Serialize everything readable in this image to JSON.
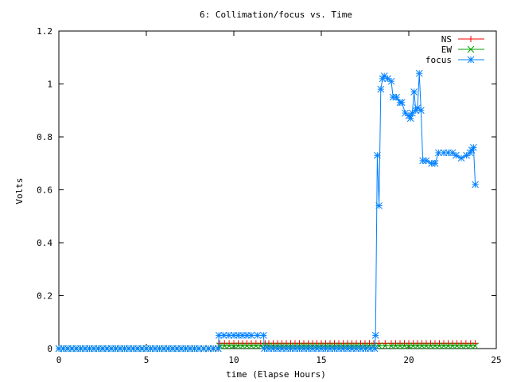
{
  "chart_data": {
    "type": "line",
    "title": "6: Collimation/focus vs. Time",
    "xlabel": "time (Elapse Hours)",
    "ylabel": "Volts",
    "xlim": [
      0,
      25
    ],
    "ylim": [
      0,
      1.2
    ],
    "xticks": [
      0,
      5,
      10,
      15,
      20,
      25
    ],
    "yticks": [
      0,
      0.2,
      0.4,
      0.6,
      0.8,
      1,
      1.2
    ],
    "xtick_labels": [
      "0",
      "5",
      "10",
      "15",
      "20",
      "25"
    ],
    "ytick_labels": [
      "0",
      "0.2",
      "0.4",
      "0.6",
      "0.8",
      "1",
      "1.2"
    ],
    "grid": false,
    "legend_position": "top-right",
    "series": [
      {
        "name": "NS",
        "color": "#ff0000",
        "marker": "plus",
        "x": [
          0,
          1,
          2,
          3,
          4,
          5,
          6,
          7,
          8,
          9.1,
          9.2,
          10,
          11,
          11.8,
          12,
          13,
          14,
          15,
          16,
          17,
          18,
          18.3,
          19,
          20,
          21,
          22,
          23,
          23.8
        ],
        "y": [
          0,
          0,
          0,
          0,
          0,
          0,
          0,
          0,
          0,
          0,
          0.02,
          0.02,
          0.02,
          0.02,
          0.02,
          0.02,
          0.02,
          0.02,
          0.02,
          0.02,
          0.02,
          0.02,
          0.02,
          0.02,
          0.02,
          0.02,
          0.02,
          0.02
        ]
      },
      {
        "name": "EW",
        "color": "#00a000",
        "marker": "cross",
        "x": [
          0,
          1,
          2,
          3,
          4,
          5,
          6,
          7,
          8,
          9.1,
          9.2,
          10,
          11,
          11.8,
          12,
          13,
          14,
          15,
          16,
          17,
          18,
          18.3,
          19,
          20,
          21,
          22,
          23,
          23.8
        ],
        "y": [
          0,
          0,
          0,
          0,
          0,
          0,
          0,
          0,
          0,
          0,
          0.01,
          0.01,
          0.01,
          0.01,
          0.01,
          0.01,
          0.01,
          0.01,
          0.01,
          0.01,
          0.01,
          0.01,
          0.01,
          0.01,
          0.01,
          0.01,
          0.01,
          0.01
        ]
      },
      {
        "name": "focus",
        "color": "#0080ff",
        "marker": "star",
        "x": [
          0,
          1,
          2,
          3,
          4,
          5,
          6,
          7,
          8,
          9.1,
          9.15,
          10,
          11,
          11.7,
          11.75,
          12,
          13,
          14,
          15,
          16,
          17,
          18.05,
          18.1,
          18.2,
          18.3,
          18.4,
          18.5,
          18.6,
          18.8,
          19,
          19.1,
          19.3,
          19.5,
          19.6,
          19.8,
          20,
          20.1,
          20.2,
          20.3,
          20.4,
          20.5,
          20.6,
          20.7,
          20.8,
          21,
          21.3,
          21.5,
          21.7,
          22,
          22.5,
          22.7,
          23,
          23.3,
          23.5,
          23.6,
          23.7,
          23.8
        ],
        "y": [
          0,
          0,
          0,
          0,
          0,
          0,
          0,
          0,
          0,
          0,
          0.05,
          0.05,
          0.05,
          0.05,
          0,
          0,
          0,
          0,
          0,
          0,
          0,
          0,
          0.05,
          0.73,
          0.54,
          0.98,
          1.02,
          1.03,
          1.02,
          1.01,
          0.95,
          0.95,
          0.93,
          0.93,
          0.89,
          0.88,
          0.87,
          0.89,
          0.97,
          0.9,
          0.91,
          1.04,
          0.9,
          0.71,
          0.71,
          0.7,
          0.7,
          0.74,
          0.74,
          0.74,
          0.73,
          0.72,
          0.73,
          0.74,
          0.75,
          0.76,
          0.62
        ]
      }
    ]
  }
}
